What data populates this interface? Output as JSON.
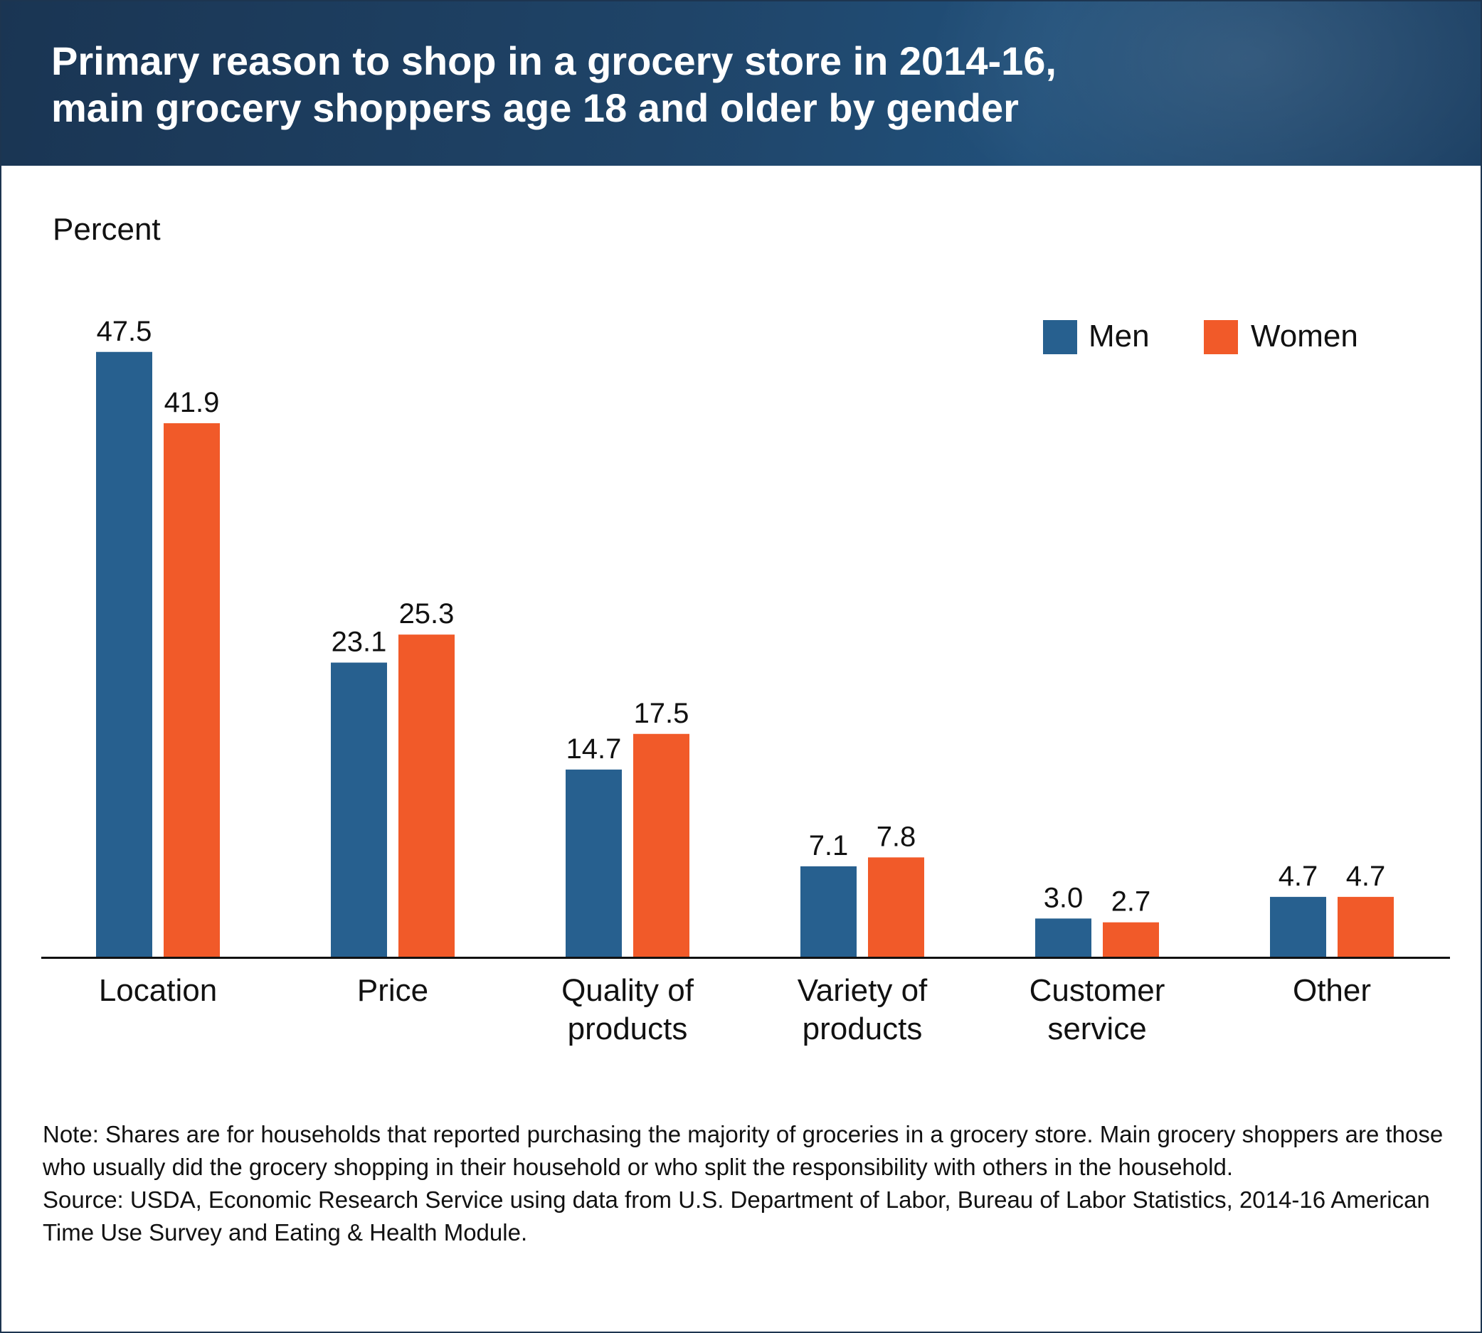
{
  "header": {
    "title_line1": "Primary reason to shop in a grocery store in 2014-16,",
    "title_line2": "main grocery shoppers age 18 and older by gender"
  },
  "colors": {
    "men": "#27608f",
    "women": "#f15a29",
    "header_bg": "#1f4468"
  },
  "chart_data": {
    "type": "bar",
    "title": "Primary reason to shop in a grocery store in 2014-16, main grocery shoppers age 18 and older by gender",
    "ylabel": "Percent",
    "xlabel": "",
    "ylim": [
      0,
      50
    ],
    "grid": false,
    "legend_position": "top-right",
    "categories": [
      [
        "Location"
      ],
      [
        "Price"
      ],
      [
        "Quality of",
        "products"
      ],
      [
        "Variety of",
        "products"
      ],
      [
        "Customer",
        "service"
      ],
      [
        "Other"
      ]
    ],
    "series": [
      {
        "name": "Men",
        "values": [
          47.5,
          23.1,
          14.7,
          7.1,
          3.0,
          4.7
        ],
        "labels": [
          "47.5",
          "23.1",
          "14.7",
          "7.1",
          "3.0",
          "4.7"
        ]
      },
      {
        "name": "Women",
        "values": [
          41.9,
          25.3,
          17.5,
          7.8,
          2.7,
          4.7
        ],
        "labels": [
          "41.9",
          "25.3",
          "17.5",
          "7.8",
          "2.7",
          "4.7"
        ]
      }
    ]
  },
  "note": {
    "note_text": "Note: Shares are for households that reported purchasing the majority of groceries in a grocery store. Main grocery shoppers are those who usually did the grocery shopping in their household or who split the responsibility with others in the household.",
    "source_text": "Source: USDA, Economic Research Service using data from U.S. Department of Labor, Bureau of Labor Statistics, 2014-16 American Time Use Survey and Eating & Health Module."
  }
}
